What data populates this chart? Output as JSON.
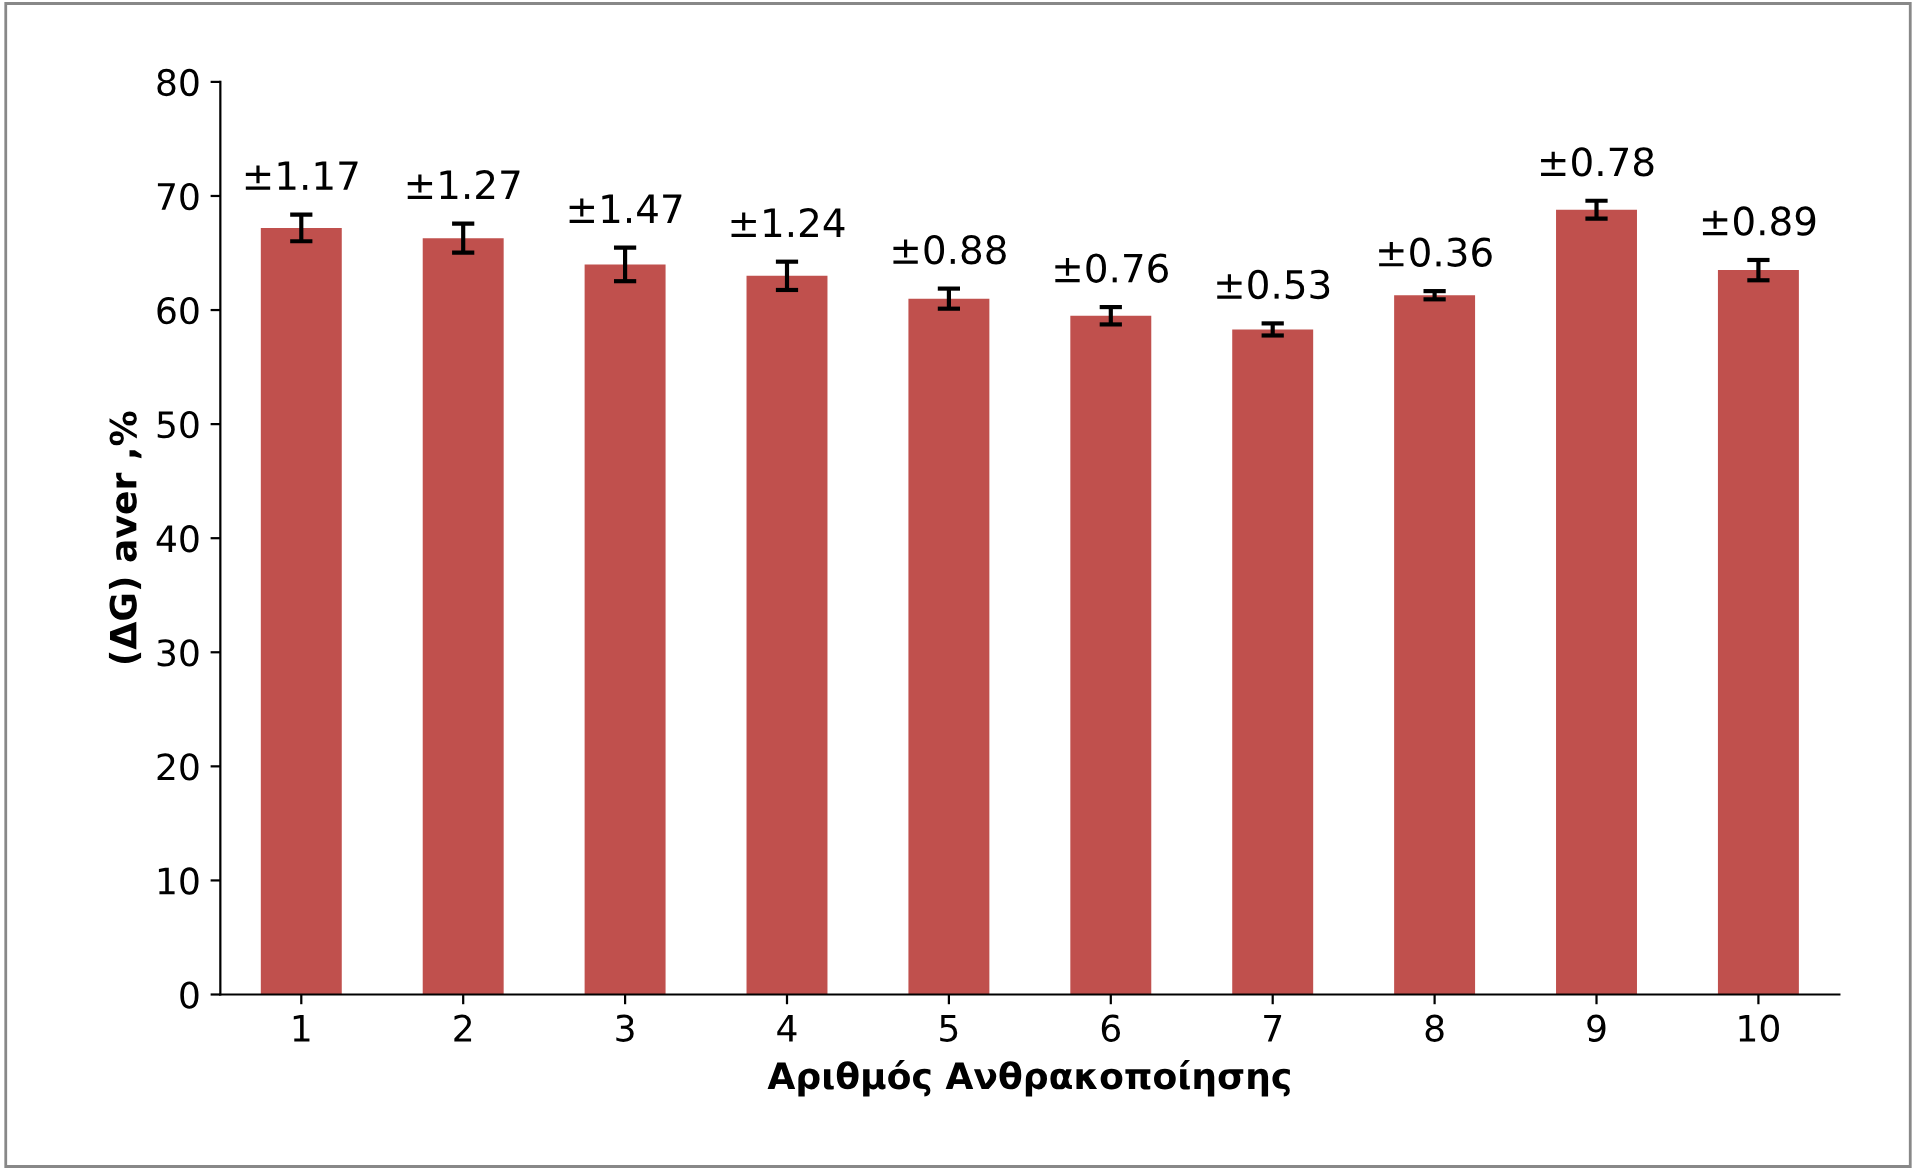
{
  "chart_data": {
    "type": "bar",
    "xlabel": "Αριθμός Ανθρακοποίησης",
    "ylabel": "(ΔG) aver ,%",
    "categories": [
      "1",
      "2",
      "3",
      "4",
      "5",
      "6",
      "7",
      "8",
      "9",
      "10"
    ],
    "values": [
      67.2,
      66.3,
      64.0,
      63.0,
      61.0,
      59.5,
      58.3,
      61.3,
      68.8,
      63.5
    ],
    "errors": [
      1.17,
      1.27,
      1.47,
      1.24,
      0.88,
      0.76,
      0.53,
      0.36,
      0.78,
      0.89
    ],
    "color": "#c0504d",
    "ylim": [
      0,
      80
    ],
    "yticks": [
      0,
      10,
      20,
      30,
      40,
      50,
      60,
      70,
      80
    ],
    "grid": false,
    "legend": false,
    "annotations": [
      {
        "text": "±1.17",
        "x": "1",
        "y": 68.37
      },
      {
        "text": "±1.27",
        "x": "2",
        "y": 67.57
      },
      {
        "text": "±1.47",
        "x": "3",
        "y": 65.47
      },
      {
        "text": "±1.24",
        "x": "4",
        "y": 64.24
      },
      {
        "text": "±0.88",
        "x": "5",
        "y": 61.88
      },
      {
        "text": "±0.76",
        "x": "6",
        "y": 60.26
      },
      {
        "text": "±0.53",
        "x": "7",
        "y": 58.83
      },
      {
        "text": "±0.36",
        "x": "8",
        "y": 61.66
      },
      {
        "text": "±0.78",
        "x": "9",
        "y": 69.58
      },
      {
        "text": "±0.89",
        "x": "10",
        "y": 64.39
      }
    ]
  }
}
